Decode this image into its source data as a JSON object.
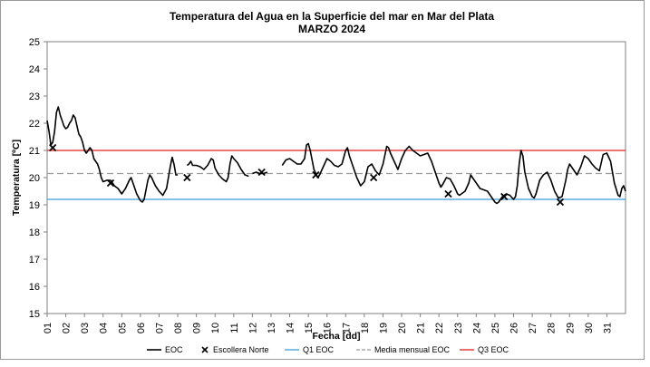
{
  "chart_data": {
    "type": "line",
    "title": "Temperatura del Agua en la Superficie del mar en Mar del Plata",
    "subtitle": "MARZO  2024",
    "xlabel": "Fecha [dd]",
    "ylabel": "Temperatura [ºC]",
    "ylim": [
      15,
      25
    ],
    "xlim": [
      1,
      32
    ],
    "grid": false,
    "legend_position": "bottom",
    "x_ticks": [
      "01",
      "02",
      "03",
      "04",
      "05",
      "06",
      "07",
      "08",
      "09",
      "10",
      "11",
      "12",
      "13",
      "14",
      "15",
      "16",
      "17",
      "18",
      "19",
      "20",
      "21",
      "22",
      "23",
      "24",
      "25",
      "26",
      "27",
      "28",
      "29",
      "30",
      "31"
    ],
    "y_ticks": [
      "15",
      "16",
      "17",
      "18",
      "19",
      "20",
      "21",
      "22",
      "23",
      "24",
      "25"
    ],
    "series": [
      {
        "name": "EOC",
        "kind": "line",
        "color": "#000000",
        "segments": [
          [
            [
              1.0,
              22.1
            ],
            [
              1.1,
              21.7
            ],
            [
              1.2,
              21.2
            ],
            [
              1.3,
              21.3
            ],
            [
              1.4,
              21.7
            ],
            [
              1.5,
              22.4
            ],
            [
              1.6,
              22.6
            ],
            [
              1.7,
              22.3
            ],
            [
              1.8,
              22.1
            ],
            [
              1.9,
              21.9
            ],
            [
              2.0,
              21.8
            ],
            [
              2.1,
              21.85
            ],
            [
              2.2,
              22.0
            ],
            [
              2.3,
              22.1
            ],
            [
              2.4,
              22.3
            ],
            [
              2.5,
              22.2
            ],
            [
              2.6,
              21.9
            ],
            [
              2.7,
              21.6
            ],
            [
              2.8,
              21.5
            ],
            [
              2.9,
              21.3
            ],
            [
              3.0,
              21.0
            ],
            [
              3.1,
              20.9
            ],
            [
              3.2,
              21.0
            ],
            [
              3.3,
              21.1
            ],
            [
              3.4,
              21.0
            ],
            [
              3.5,
              20.7
            ],
            [
              3.6,
              20.6
            ],
            [
              3.7,
              20.5
            ],
            [
              3.8,
              20.3
            ],
            [
              3.9,
              20.0
            ],
            [
              4.0,
              19.85
            ],
            [
              4.2,
              19.9
            ],
            [
              4.4,
              19.9
            ],
            [
              4.6,
              19.7
            ],
            [
              4.8,
              19.6
            ],
            [
              5.0,
              19.4
            ],
            [
              5.2,
              19.6
            ],
            [
              5.4,
              19.9
            ],
            [
              5.5,
              20.0
            ],
            [
              5.6,
              19.8
            ],
            [
              5.8,
              19.4
            ],
            [
              6.0,
              19.15
            ],
            [
              6.1,
              19.1
            ],
            [
              6.2,
              19.2
            ],
            [
              6.4,
              19.9
            ],
            [
              6.5,
              20.1
            ],
            [
              6.6,
              20.0
            ],
            [
              6.8,
              19.7
            ],
            [
              7.0,
              19.5
            ],
            [
              7.2,
              19.35
            ],
            [
              7.4,
              19.6
            ],
            [
              7.6,
              20.4
            ],
            [
              7.7,
              20.75
            ],
            [
              7.8,
              20.5
            ],
            [
              7.9,
              20.1
            ],
            [
              8.0,
              20.1
            ]
          ],
          [
            [
              8.5,
              20.45
            ],
            [
              8.6,
              20.5
            ],
            [
              8.7,
              20.6
            ],
            [
              8.8,
              20.45
            ],
            [
              9.0,
              20.45
            ],
            [
              9.2,
              20.4
            ],
            [
              9.4,
              20.3
            ],
            [
              9.6,
              20.45
            ],
            [
              9.8,
              20.7
            ],
            [
              9.9,
              20.65
            ],
            [
              10.0,
              20.35
            ],
            [
              10.2,
              20.1
            ],
            [
              10.4,
              19.95
            ],
            [
              10.6,
              19.85
            ],
            [
              10.7,
              20.0
            ],
            [
              10.8,
              20.5
            ],
            [
              10.9,
              20.8
            ],
            [
              11.0,
              20.7
            ],
            [
              11.2,
              20.55
            ],
            [
              11.4,
              20.3
            ],
            [
              11.6,
              20.1
            ],
            [
              11.8,
              20.05
            ]
          ],
          [
            [
              12.0,
              20.15
            ],
            [
              12.2,
              20.2
            ],
            [
              12.4,
              20.15
            ],
            [
              12.6,
              20.15
            ],
            [
              12.8,
              20.2
            ]
          ],
          [
            [
              13.6,
              20.45
            ],
            [
              13.8,
              20.65
            ],
            [
              14.0,
              20.7
            ],
            [
              14.2,
              20.6
            ],
            [
              14.4,
              20.5
            ],
            [
              14.6,
              20.5
            ],
            [
              14.8,
              20.7
            ],
            [
              14.9,
              21.2
            ],
            [
              15.0,
              21.25
            ],
            [
              15.1,
              21.0
            ],
            [
              15.3,
              20.3
            ],
            [
              15.5,
              20.0
            ],
            [
              15.6,
              20.1
            ],
            [
              15.8,
              20.4
            ],
            [
              16.0,
              20.7
            ],
            [
              16.2,
              20.6
            ],
            [
              16.4,
              20.45
            ],
            [
              16.6,
              20.4
            ],
            [
              16.8,
              20.5
            ],
            [
              17.0,
              21.0
            ],
            [
              17.1,
              21.1
            ],
            [
              17.2,
              20.8
            ],
            [
              17.4,
              20.4
            ],
            [
              17.6,
              20.0
            ],
            [
              17.8,
              19.7
            ],
            [
              18.0,
              19.85
            ],
            [
              18.2,
              20.4
            ],
            [
              18.4,
              20.5
            ],
            [
              18.6,
              20.25
            ],
            [
              18.8,
              20.1
            ],
            [
              19.0,
              20.5
            ],
            [
              19.2,
              21.15
            ],
            [
              19.3,
              21.1
            ],
            [
              19.4,
              20.9
            ],
            [
              19.6,
              20.6
            ],
            [
              19.8,
              20.3
            ],
            [
              20.0,
              20.7
            ],
            [
              20.2,
              21.0
            ],
            [
              20.4,
              21.15
            ],
            [
              20.6,
              21.0
            ],
            [
              20.8,
              20.9
            ],
            [
              21.0,
              20.8
            ],
            [
              21.2,
              20.85
            ],
            [
              21.4,
              20.9
            ],
            [
              21.6,
              20.6
            ],
            [
              21.8,
              20.2
            ],
            [
              22.0,
              19.8
            ],
            [
              22.1,
              19.65
            ],
            [
              22.2,
              19.75
            ],
            [
              22.4,
              20.0
            ],
            [
              22.6,
              19.95
            ],
            [
              22.8,
              19.7
            ],
            [
              23.0,
              19.4
            ],
            [
              23.1,
              19.35
            ],
            [
              23.2,
              19.4
            ],
            [
              23.4,
              19.5
            ],
            [
              23.6,
              19.8
            ],
            [
              23.7,
              20.1
            ],
            [
              23.8,
              20.0
            ],
            [
              24.0,
              19.8
            ],
            [
              24.2,
              19.6
            ],
            [
              24.4,
              19.55
            ],
            [
              24.6,
              19.5
            ],
            [
              24.8,
              19.3
            ],
            [
              25.0,
              19.1
            ],
            [
              25.1,
              19.05
            ],
            [
              25.2,
              19.1
            ],
            [
              25.4,
              19.3
            ],
            [
              25.6,
              19.4
            ],
            [
              25.8,
              19.35
            ],
            [
              26.0,
              19.2
            ],
            [
              26.1,
              19.3
            ],
            [
              26.2,
              19.7
            ],
            [
              26.3,
              20.5
            ],
            [
              26.4,
              21.0
            ],
            [
              26.5,
              20.8
            ],
            [
              26.6,
              20.2
            ],
            [
              26.8,
              19.6
            ],
            [
              27.0,
              19.3
            ],
            [
              27.1,
              19.25
            ],
            [
              27.2,
              19.4
            ],
            [
              27.4,
              19.9
            ],
            [
              27.6,
              20.1
            ],
            [
              27.8,
              20.2
            ],
            [
              28.0,
              19.9
            ],
            [
              28.2,
              19.5
            ],
            [
              28.4,
              19.25
            ],
            [
              28.6,
              19.3
            ],
            [
              28.8,
              19.9
            ],
            [
              28.9,
              20.3
            ],
            [
              29.0,
              20.5
            ],
            [
              29.2,
              20.3
            ],
            [
              29.4,
              20.1
            ],
            [
              29.6,
              20.4
            ],
            [
              29.8,
              20.8
            ],
            [
              30.0,
              20.7
            ],
            [
              30.2,
              20.5
            ],
            [
              30.4,
              20.35
            ],
            [
              30.6,
              20.25
            ],
            [
              30.8,
              20.85
            ],
            [
              31.0,
              20.9
            ],
            [
              31.2,
              20.6
            ],
            [
              31.4,
              19.8
            ],
            [
              31.6,
              19.35
            ],
            [
              31.7,
              19.3
            ],
            [
              31.8,
              19.6
            ],
            [
              31.9,
              19.7
            ],
            [
              32.0,
              19.5
            ]
          ]
        ]
      },
      {
        "name": "Escollera Norte",
        "kind": "marker",
        "marker": "x",
        "color": "#000000",
        "points": [
          [
            1.3,
            21.1
          ],
          [
            4.4,
            19.8
          ],
          [
            8.5,
            20.0
          ],
          [
            12.5,
            20.2
          ],
          [
            15.4,
            20.1
          ],
          [
            18.5,
            20.0
          ],
          [
            22.5,
            19.4
          ],
          [
            25.5,
            19.3
          ],
          [
            28.5,
            19.1
          ]
        ]
      },
      {
        "name": "Q1 EOC",
        "kind": "hline",
        "y": 19.2,
        "color": "#3e9ed9"
      },
      {
        "name": "Media mensual EOC",
        "kind": "hline",
        "y": 20.15,
        "color": "#9a9a9a",
        "dashed": true
      },
      {
        "name": "Q3  EOC",
        "kind": "hline",
        "y": 21.0,
        "color": "#e02020"
      }
    ]
  }
}
